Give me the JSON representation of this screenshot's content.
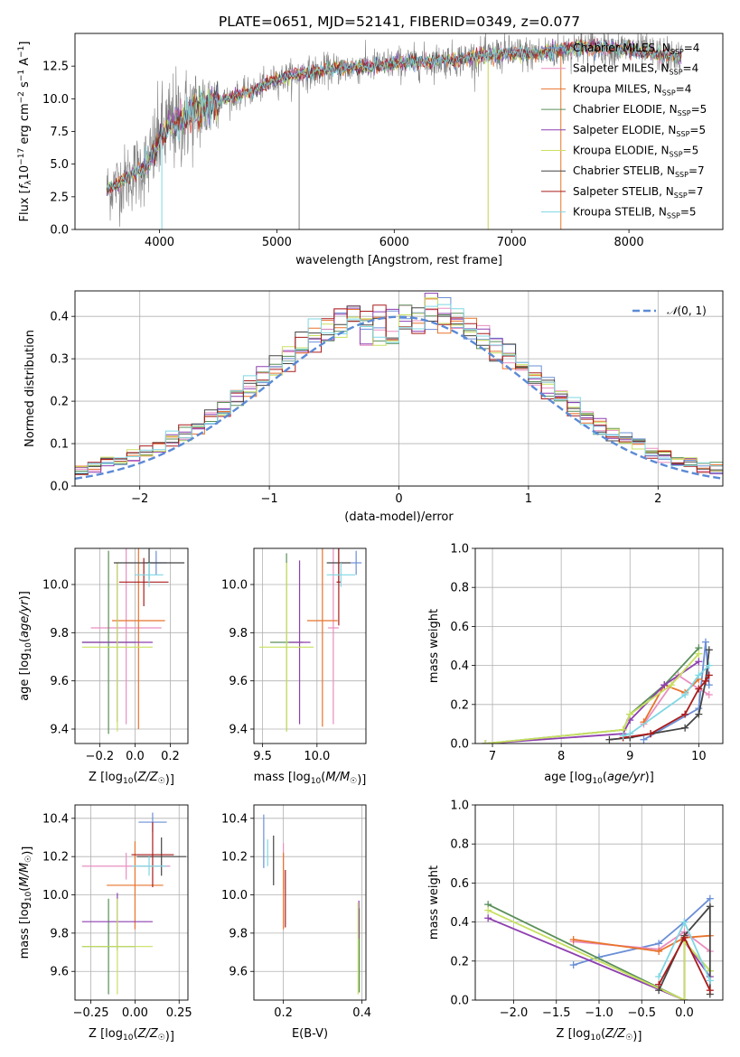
{
  "figure_title": "PLATE=0651, MJD=52141, FIBERID=0349, z=0.077",
  "colors": {
    "Chabrier MILES": "#6b8fd6",
    "Salpeter MILES": "#e98fc0",
    "Kroupa MILES": "#e8732c",
    "Chabrier ELODIE": "#5a8f5a",
    "Salpeter ELODIE": "#8e3fb0",
    "Kroupa ELODIE": "#c8e060",
    "Chabrier STELIB": "#444444",
    "Salpeter STELIB": "#aa1c1c",
    "Kroupa STELIB": "#7fd7e3",
    "observed_spectrum": "#808080",
    "normal_curve": "#5b8ad6"
  },
  "chart_data": [
    {
      "id": "spectrum",
      "type": "line",
      "title": "PLATE=0651, MJD=52141, FIBERID=0349, z=0.077",
      "xlabel": "wavelength [Angstrom, rest frame]",
      "ylabel": "Flux [f_λ 10^-17 erg cm^-2 s^-1 A^-1]",
      "xlim": [
        3280,
        8800
      ],
      "ylim": [
        0,
        15
      ],
      "xticks": [
        4000,
        5000,
        6000,
        7000,
        8000
      ],
      "yticks": [
        0.0,
        2.5,
        5.0,
        7.5,
        10.0,
        12.5
      ],
      "grid": false,
      "legend_position": "right",
      "legend": [
        {
          "name": "Chabrier MILES",
          "n_ssp": 4
        },
        {
          "name": "Salpeter MILES",
          "n_ssp": 4
        },
        {
          "name": "Kroupa MILES",
          "n_ssp": 4
        },
        {
          "name": "Chabrier ELODIE",
          "n_ssp": 5
        },
        {
          "name": "Salpeter ELODIE",
          "n_ssp": 5
        },
        {
          "name": "Kroupa ELODIE",
          "n_ssp": 5
        },
        {
          "name": "Chabrier STELIB",
          "n_ssp": 7
        },
        {
          "name": "Salpeter STELIB",
          "n_ssp": 7
        },
        {
          "name": "Kroupa STELIB",
          "n_ssp": 5
        }
      ],
      "continuum": {
        "x": [
          3550,
          3700,
          3900,
          4000,
          4100,
          4300,
          4500,
          4800,
          5000,
          5200,
          5500,
          5800,
          6000,
          6200,
          6500,
          6800,
          7000,
          7200,
          7400,
          7600,
          8000,
          8400
        ],
        "y": [
          3.0,
          3.8,
          5.0,
          7.0,
          8.0,
          9.0,
          9.8,
          10.6,
          11.5,
          11.9,
          12.3,
          12.5,
          12.7,
          12.8,
          13.0,
          13.3,
          13.5,
          13.4,
          13.7,
          14.0,
          13.8,
          13.2
        ]
      },
      "models_x_range": [
        3550,
        8450
      ],
      "noise_fraction_blue": 0.15,
      "spikes_down": [
        [
          5190,
          0
        ],
        [
          6800,
          0
        ],
        [
          7420,
          0
        ],
        [
          4020,
          0
        ]
      ]
    },
    {
      "id": "residuals",
      "type": "histogram",
      "xlabel": "(data-model)/error",
      "ylabel": "Normed distribution",
      "xlim": [
        -2.5,
        2.5
      ],
      "ylim": [
        0,
        0.46
      ],
      "xticks": [
        -2,
        -1,
        0,
        1,
        2
      ],
      "yticks": [
        0.0,
        0.1,
        0.2,
        0.3,
        0.4
      ],
      "grid": true,
      "legend_position": "top-right",
      "legend": [
        "N(0,1)"
      ],
      "bin_width": 0.1,
      "bin_start": -2.5,
      "reference_curve": {
        "name": "N(0,1)",
        "mean": 0,
        "sigma": 1
      }
    },
    {
      "id": "age_vs_Z",
      "type": "errorbar",
      "xlabel": "Z [log10(Z/Z☉)]",
      "ylabel": "age [log10(age/yr)]",
      "xlim": [
        -0.34,
        0.3
      ],
      "ylim": [
        9.34,
        10.15
      ],
      "xticks": [
        -0.2,
        0.0,
        0.2
      ],
      "yticks": [
        9.4,
        9.6,
        9.8,
        10.0
      ],
      "grid": true,
      "points": [
        {
          "model": "Chabrier MILES",
          "x": 0.12,
          "xerr": 0.06,
          "y": 10.09,
          "yerr": 0.05
        },
        {
          "model": "Salpeter MILES",
          "x": -0.05,
          "xerr": 0.2,
          "y": 9.82,
          "yerr": 0.4
        },
        {
          "model": "Kroupa MILES",
          "x": 0.02,
          "xerr": 0.15,
          "y": 9.85,
          "yerr": 0.45
        },
        {
          "model": "Chabrier ELODIE",
          "x": -0.15,
          "xerr": 0.15,
          "y": 9.76,
          "yerr": 0.38
        },
        {
          "model": "Salpeter ELODIE",
          "x": -0.1,
          "xerr": 0.2,
          "y": 9.76,
          "yerr": 0.33
        },
        {
          "model": "Kroupa ELODIE",
          "x": -0.1,
          "xerr": 0.2,
          "y": 9.74,
          "yerr": 0.35
        },
        {
          "model": "Chabrier STELIB",
          "x": 0.08,
          "xerr": 0.2,
          "y": 10.09,
          "yerr": 0.07
        },
        {
          "model": "Salpeter STELIB",
          "x": 0.05,
          "xerr": 0.14,
          "y": 10.01,
          "yerr": 0.1
        },
        {
          "model": "Kroupa STELIB",
          "x": 0.08,
          "xerr": 0.08,
          "y": 10.04,
          "yerr": 0.05
        }
      ]
    },
    {
      "id": "age_vs_mass",
      "type": "errorbar",
      "xlabel": "mass [log10(M/M☉)]",
      "ylabel": "",
      "xlim": [
        9.42,
        10.45
      ],
      "ylim": [
        9.34,
        10.15
      ],
      "xticks": [
        9.5,
        10.0
      ],
      "yticks": [
        9.4,
        9.6,
        9.8,
        10.0
      ],
      "grid": true,
      "points": [
        {
          "model": "Chabrier MILES",
          "x": 10.36,
          "xerr": 0.05,
          "y": 10.09,
          "yerr": 0.05
        },
        {
          "model": "Salpeter MILES",
          "x": 10.15,
          "xerr": 0.05,
          "y": 9.82,
          "yerr": 0.4
        },
        {
          "model": "Kroupa MILES",
          "x": 10.05,
          "xerr": 0.14,
          "y": 9.85,
          "yerr": 0.44
        },
        {
          "model": "Chabrier ELODIE",
          "x": 9.72,
          "xerr": 0.15,
          "y": 9.76,
          "yerr": 0.37
        },
        {
          "model": "Salpeter ELODIE",
          "x": 9.84,
          "xerr": 0.1,
          "y": 9.76,
          "yerr": 0.34
        },
        {
          "model": "Kroupa ELODIE",
          "x": 9.72,
          "xerr": 0.25,
          "y": 9.74,
          "yerr": 0.35
        },
        {
          "model": "Chabrier STELIB",
          "x": 10.2,
          "xerr": 0.11,
          "y": 10.09,
          "yerr": 0.08
        },
        {
          "model": "Salpeter STELIB",
          "x": 10.2,
          "xerr": 0.02,
          "y": 10.01,
          "yerr": 0.18
        },
        {
          "model": "Kroupa STELIB",
          "x": 10.22,
          "xerr": 0.13,
          "y": 10.04,
          "yerr": 0.05
        }
      ]
    },
    {
      "id": "massweight_vs_age",
      "type": "line",
      "xlabel": "age [log10(age/yr)]",
      "ylabel": "mass weight",
      "xlim": [
        6.75,
        10.35
      ],
      "ylim": [
        0,
        1
      ],
      "xticks": [
        7,
        8,
        9,
        10
      ],
      "yticks": [
        0.0,
        0.2,
        0.4,
        0.6,
        0.8,
        1.0
      ],
      "grid": true,
      "series": [
        {
          "model": "Chabrier MILES",
          "x": [
            9.2,
            10.0,
            10.1,
            10.15
          ],
          "y": [
            0.02,
            0.18,
            0.52,
            0.3
          ]
        },
        {
          "model": "Salpeter MILES",
          "x": [
            9.2,
            9.7,
            10.0,
            10.15
          ],
          "y": [
            0.1,
            0.35,
            0.28,
            0.25
          ]
        },
        {
          "model": "Kroupa MILES",
          "x": [
            9.2,
            9.5,
            9.8,
            10.0
          ],
          "y": [
            0.11,
            0.3,
            0.26,
            0.33
          ]
        },
        {
          "model": "Chabrier ELODIE",
          "x": [
            6.9,
            8.9,
            9.0,
            9.5,
            10.0
          ],
          "y": [
            0.0,
            0.07,
            0.15,
            0.3,
            0.49
          ]
        },
        {
          "model": "Salpeter ELODIE",
          "x": [
            6.9,
            8.9,
            9.0,
            9.5,
            10.0
          ],
          "y": [
            0.0,
            0.05,
            0.12,
            0.3,
            0.42
          ]
        },
        {
          "model": "Kroupa ELODIE",
          "x": [
            6.9,
            8.9,
            9.0,
            9.6,
            10.0
          ],
          "y": [
            0.0,
            0.07,
            0.15,
            0.3,
            0.46
          ]
        },
        {
          "model": "Chabrier STELIB",
          "x": [
            8.7,
            9.0,
            9.3,
            9.8,
            10.0,
            10.1,
            10.15
          ],
          "y": [
            0.02,
            0.03,
            0.05,
            0.08,
            0.15,
            0.32,
            0.48
          ]
        },
        {
          "model": "Salpeter STELIB",
          "x": [
            8.9,
            9.3,
            9.8,
            10.0,
            10.1,
            10.15
          ],
          "y": [
            0.03,
            0.05,
            0.15,
            0.28,
            0.32,
            0.35
          ]
        },
        {
          "model": "Kroupa STELIB",
          "x": [
            8.9,
            9.0,
            9.8,
            10.0,
            10.15
          ],
          "y": [
            0.04,
            0.05,
            0.25,
            0.35,
            0.4
          ]
        }
      ]
    },
    {
      "id": "mass_vs_Z",
      "type": "errorbar",
      "xlabel": "Z [log10(Z/Z☉)]",
      "ylabel": "mass [log10(M/M☉)]",
      "xlim": [
        -0.34,
        0.3
      ],
      "ylim": [
        9.45,
        10.47
      ],
      "xticks": [
        -0.25,
        0.0,
        0.25
      ],
      "yticks": [
        9.6,
        9.8,
        10.0,
        10.2,
        10.4
      ],
      "grid": true,
      "points": [
        {
          "model": "Chabrier MILES",
          "x": 0.1,
          "xerr": 0.08,
          "y": 10.38,
          "yerr": 0.05
        },
        {
          "model": "Salpeter MILES",
          "x": -0.05,
          "xerr": 0.25,
          "y": 10.15,
          "yerr": 0.07
        },
        {
          "model": "Kroupa MILES",
          "x": 0.0,
          "xerr": 0.16,
          "y": 10.05,
          "yerr": 0.23
        },
        {
          "model": "Chabrier ELODIE",
          "x": -0.15,
          "xerr": 0.15,
          "y": 9.73,
          "yerr": 0.25
        },
        {
          "model": "Salpeter ELODIE",
          "x": -0.1,
          "xerr": 0.2,
          "y": 9.86,
          "yerr": 0.15
        },
        {
          "model": "Kroupa ELODIE",
          "x": -0.1,
          "xerr": 0.2,
          "y": 9.73,
          "yerr": 0.25
        },
        {
          "model": "Chabrier STELIB",
          "x": 0.15,
          "xerr": 0.14,
          "y": 10.2,
          "yerr": 0.1
        },
        {
          "model": "Salpeter STELIB",
          "x": 0.1,
          "xerr": 0.12,
          "y": 10.21,
          "yerr": 0.17
        },
        {
          "model": "Kroupa STELIB",
          "x": 0.08,
          "xerr": 0.1,
          "y": 10.15,
          "yerr": 0.05
        }
      ]
    },
    {
      "id": "mass_vs_ebv",
      "type": "errorbar",
      "xlabel": "E(B-V)",
      "ylabel": "",
      "xlim": [
        0.125,
        0.41
      ],
      "ylim": [
        9.45,
        10.47
      ],
      "xticks": [
        0.2,
        0.4
      ],
      "yticks": [
        9.6,
        9.8,
        10.0,
        10.2,
        10.4
      ],
      "grid": true,
      "points": [
        {
          "model": "Chabrier MILES",
          "x": 0.15,
          "xerr": 0,
          "y": 10.28,
          "yerr": 0.14
        },
        {
          "model": "Salpeter MILES",
          "x": 0.2,
          "xerr": 0,
          "y": 10.15,
          "yerr": 0.12
        },
        {
          "model": "Kroupa MILES",
          "x": 0.2,
          "xerr": 0,
          "y": 10.02,
          "yerr": 0.2
        },
        {
          "model": "Chabrier ELODIE",
          "x": 0.393,
          "xerr": 0,
          "y": 9.71,
          "yerr": 0.22
        },
        {
          "model": "Salpeter ELODIE",
          "x": 0.392,
          "xerr": 0,
          "y": 9.87,
          "yerr": 0.1
        },
        {
          "model": "Kroupa ELODIE",
          "x": 0.39,
          "xerr": 0,
          "y": 9.72,
          "yerr": 0.24
        },
        {
          "model": "Chabrier STELIB",
          "x": 0.175,
          "xerr": 0,
          "y": 10.18,
          "yerr": 0.13
        },
        {
          "model": "Salpeter STELIB",
          "x": 0.205,
          "xerr": 0,
          "y": 9.98,
          "yerr": 0.15
        },
        {
          "model": "Kroupa STELIB",
          "x": 0.16,
          "xerr": 0,
          "y": 10.22,
          "yerr": 0.07
        }
      ]
    },
    {
      "id": "massweight_vs_Z",
      "type": "line",
      "xlabel": "Z [log10(Z/Z☉)]",
      "ylabel": "mass weight",
      "xlim": [
        -2.45,
        0.45
      ],
      "ylim": [
        0,
        1
      ],
      "xticks": [
        -2.0,
        -1.5,
        -1.0,
        -0.5,
        0.0
      ],
      "yticks": [
        0.0,
        0.2,
        0.4,
        0.6,
        0.8,
        1.0
      ],
      "grid": true,
      "series": [
        {
          "model": "Chabrier MILES",
          "x": [
            -1.3,
            -1.0,
            -0.3,
            0.0,
            0.3
          ],
          "y": [
            0.18,
            0.22,
            0.29,
            0.4,
            0.52
          ]
        },
        {
          "model": "Salpeter MILES",
          "x": [
            -1.3,
            -0.3,
            0.0,
            0.3
          ],
          "y": [
            0.3,
            0.26,
            0.35,
            0.25
          ]
        },
        {
          "model": "Kroupa MILES",
          "x": [
            -1.3,
            -0.3,
            0.0,
            0.3
          ],
          "y": [
            0.31,
            0.25,
            0.32,
            0.33
          ]
        },
        {
          "model": "Chabrier ELODIE",
          "x": [
            -2.3,
            0.0,
            0.0,
            0.3
          ],
          "y": [
            0.49,
            0.0,
            0.3,
            0.15
          ]
        },
        {
          "model": "Salpeter ELODIE",
          "x": [
            -2.3,
            0.0,
            0.0,
            0.3
          ],
          "y": [
            0.42,
            0.0,
            0.3,
            0.12
          ]
        },
        {
          "model": "Kroupa ELODIE",
          "x": [
            -2.3,
            0.0,
            0.0,
            0.3
          ],
          "y": [
            0.46,
            0.0,
            0.3,
            0.15
          ]
        },
        {
          "model": "Chabrier STELIB",
          "x": [
            -0.3,
            0.0,
            0.3,
            0.3
          ],
          "y": [
            0.05,
            0.33,
            0.48,
            0.03
          ]
        },
        {
          "model": "Salpeter STELIB",
          "x": [
            -0.3,
            0.0,
            0.3
          ],
          "y": [
            0.08,
            0.32,
            0.05
          ]
        },
        {
          "model": "Kroupa STELIB",
          "x": [
            -0.3,
            0.0,
            0.3
          ],
          "y": [
            0.12,
            0.4,
            0.1
          ]
        }
      ]
    }
  ]
}
